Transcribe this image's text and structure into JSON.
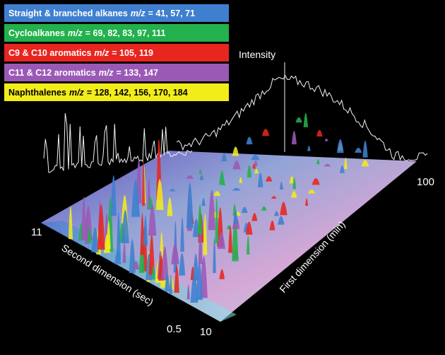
{
  "chart_data": {
    "type": "surface",
    "zlabel": "Intensity",
    "xlabel": "First dimension (min)",
    "ylabel": "Second dimension (sec)",
    "x_ticks": [
      "10",
      "100"
    ],
    "y_ticks": [
      "11",
      "0.5"
    ],
    "xlim": [
      10,
      100
    ],
    "ylim": [
      0.5,
      11
    ],
    "series": [
      {
        "name": "Straight & branched alkanes",
        "mz_label": "m/z",
        "values": "= 41, 57, 71",
        "color": "#3f7fcf"
      },
      {
        "name": "Cycloalkanes",
        "mz_label": "m/z",
        "values": "= 69, 82, 83, 97, 111",
        "color": "#22b14c"
      },
      {
        "name": "C9 & C10 aromatics",
        "mz_label": "m/z",
        "values": "= 105, 119",
        "color": "#e8251f"
      },
      {
        "name": "C11 & C12 aromatics",
        "mz_label": "m/z",
        "values": "= 133, 147",
        "color": "#9b59b6"
      },
      {
        "name": "Naphthalenes",
        "mz_label": "m/z",
        "values": "= 128, 142, 156, 170, 184",
        "color": "#f2ec1a"
      }
    ]
  }
}
